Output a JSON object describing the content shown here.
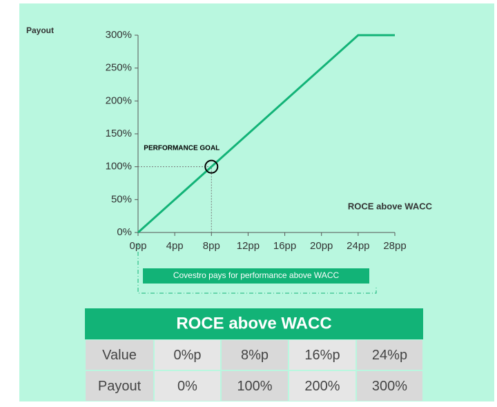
{
  "chart_data": {
    "type": "line",
    "y_label": "Payout",
    "x_label": "ROCE above WACC",
    "x": [
      0,
      24,
      28
    ],
    "series": [
      {
        "name": "Payout",
        "color": "#12b377",
        "values": [
          0,
          300,
          300
        ]
      }
    ],
    "xlim": [
      0,
      28
    ],
    "xticks": [
      {
        "value": 0,
        "label": "0pp"
      },
      {
        "value": 4,
        "label": "4pp"
      },
      {
        "value": 8,
        "label": "8pp"
      },
      {
        "value": 12,
        "label": "12pp"
      },
      {
        "value": 16,
        "label": "16pp"
      },
      {
        "value": 20,
        "label": "20pp"
      },
      {
        "value": 24,
        "label": "24pp"
      },
      {
        "value": 28,
        "label": "28pp"
      }
    ],
    "ylim": [
      0,
      300
    ],
    "yticks": [
      {
        "value": 0,
        "label": "0%"
      },
      {
        "value": 50,
        "label": "50%"
      },
      {
        "value": 100,
        "label": "100%"
      },
      {
        "value": 150,
        "label": "150%"
      },
      {
        "value": 200,
        "label": "200%"
      },
      {
        "value": 250,
        "label": "250%"
      },
      {
        "value": 300,
        "label": "300%"
      }
    ],
    "annotation": {
      "text": "PERFORMANCE GOAL",
      "x": 8,
      "y": 100
    },
    "banner": "Covestro pays for performance above WACC"
  },
  "table": {
    "title": "ROCE above WACC",
    "rows": [
      [
        "Value",
        "0%p",
        "8%p",
        "16%p",
        "24%p"
      ],
      [
        "Payout",
        "0%",
        "100%",
        "200%",
        "300%"
      ]
    ]
  }
}
